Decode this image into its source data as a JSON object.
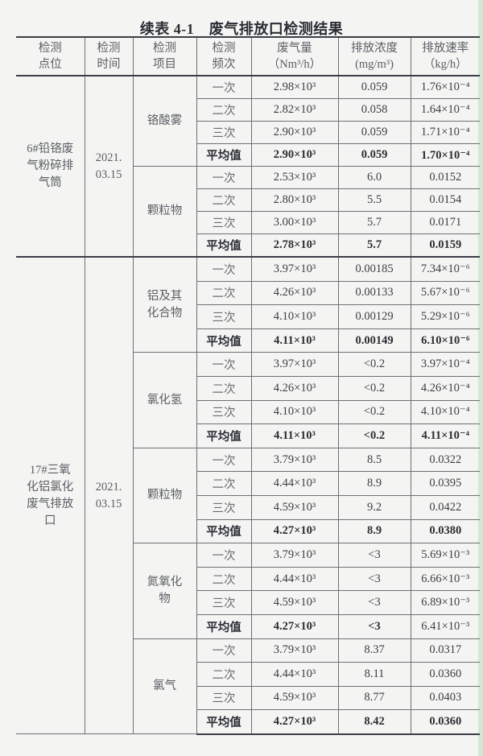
{
  "title": "续表 4-1　废气排放口检测结果",
  "headers": [
    "检测\n点位",
    "检测\n时间",
    "检测\n项目",
    "检测\n频次",
    "废气量\n（Nm³/h）",
    "排放浓度\n(mg/m³)",
    "排放速率\n（kg/h）"
  ],
  "blocks": [
    {
      "location": "6#铅铬废\n气粉碎排\n气筒",
      "date": "2021.\n03.15",
      "items": [
        {
          "name": "铬酸雾",
          "rows": [
            [
              "一次",
              "2.98×10³",
              "0.059",
              "1.76×10⁻⁴"
            ],
            [
              "二次",
              "2.82×10³",
              "0.058",
              "1.64×10⁻⁴"
            ],
            [
              "三次",
              "2.90×10³",
              "0.059",
              "1.71×10⁻⁴"
            ],
            [
              "平均值",
              "2.90×10³",
              "0.059",
              "1.70×10⁻⁴"
            ]
          ]
        },
        {
          "name": "颗粒物",
          "rows": [
            [
              "一次",
              "2.53×10³",
              "6.0",
              "0.0152"
            ],
            [
              "二次",
              "2.80×10³",
              "5.5",
              "0.0154"
            ],
            [
              "三次",
              "3.00×10³",
              "5.7",
              "0.0171"
            ],
            [
              "平均值",
              "2.78×10³",
              "5.7",
              "0.0159"
            ]
          ]
        }
      ]
    },
    {
      "location": "17#三氧\n化铝氯化\n废气排放\n口",
      "date": "2021.\n03.15",
      "items": [
        {
          "name": "铝及其\n化合物",
          "rows": [
            [
              "一次",
              "3.97×10³",
              "0.00185",
              "7.34×10⁻⁶"
            ],
            [
              "二次",
              "4.26×10³",
              "0.00133",
              "5.67×10⁻⁶"
            ],
            [
              "三次",
              "4.10×10³",
              "0.00129",
              "5.29×10⁻⁶"
            ],
            [
              "平均值",
              "4.11×10³",
              "0.00149",
              "6.10×10⁻⁶"
            ]
          ]
        },
        {
          "name": "氯化氢",
          "rows": [
            [
              "一次",
              "3.97×10³",
              "<0.2",
              "3.97×10⁻⁴"
            ],
            [
              "二次",
              "4.26×10³",
              "<0.2",
              "4.26×10⁻⁴"
            ],
            [
              "三次",
              "4.10×10³",
              "<0.2",
              "4.10×10⁻⁴"
            ],
            [
              "平均值",
              "4.11×10³",
              "<0.2",
              "4.11×10⁻⁴"
            ]
          ]
        },
        {
          "name": "颗粒物",
          "rows": [
            [
              "一次",
              "3.79×10³",
              "8.5",
              "0.0322"
            ],
            [
              "二次",
              "4.44×10³",
              "8.9",
              "0.0395"
            ],
            [
              "三次",
              "4.59×10³",
              "9.2",
              "0.0422"
            ],
            [
              "平均值",
              "4.27×10³",
              "8.9",
              "0.0380"
            ]
          ]
        },
        {
          "name": "氮氧化\n物",
          "rows": [
            [
              "一次",
              "3.79×10³",
              "<3",
              "5.69×10⁻³"
            ],
            [
              "二次",
              "4.44×10³",
              "<3",
              "6.66×10⁻³"
            ],
            [
              "三次",
              "4.59×10³",
              "<3",
              "6.89×10⁻³"
            ],
            [
              "平均值",
              "4.27×10³",
              "<3",
              "6.41×10⁻³"
            ]
          ]
        },
        {
          "name": "氯气",
          "rows": [
            [
              "一次",
              "3.79×10³",
              "8.37",
              "0.0317"
            ],
            [
              "二次",
              "4.44×10³",
              "8.11",
              "0.0360"
            ],
            [
              "三次",
              "4.59×10³",
              "8.77",
              "0.0403"
            ],
            [
              "平均值",
              "4.27×10³",
              "8.42",
              "0.0360"
            ]
          ]
        }
      ]
    }
  ]
}
